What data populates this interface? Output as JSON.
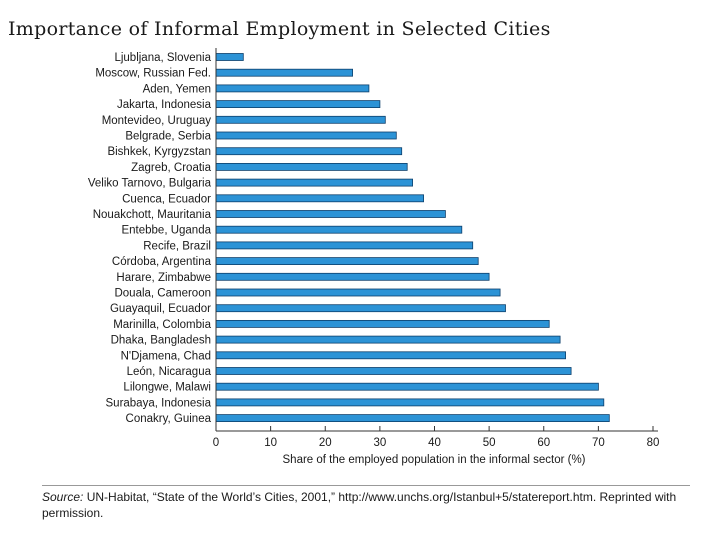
{
  "slide": {
    "title": "Importance of Informal Employment in Selected Cities"
  },
  "chart_data": {
    "type": "bar",
    "orientation": "horizontal",
    "title": "",
    "xlabel": "Share of the employed population in the informal sector (%)",
    "ylabel": "",
    "xlim": [
      0,
      80
    ],
    "xticks": [
      0,
      10,
      20,
      30,
      40,
      50,
      60,
      70,
      80
    ],
    "grid": false,
    "bar_color": "#2c93d6",
    "bar_edge_color": "#0d3f6b",
    "categories": [
      "Ljubljana, Slovenia",
      "Moscow, Russian Fed.",
      "Aden, Yemen",
      "Jakarta, Indonesia",
      "Montevideo, Uruguay",
      "Belgrade, Serbia",
      "Bishkek, Kyrgyzstan",
      "Zagreb, Croatia",
      "Veliko Tarnovo, Bulgaria",
      "Cuenca, Ecuador",
      "Nouakchott, Mauritania",
      "Entebbe, Uganda",
      "Recife, Brazil",
      "Córdoba, Argentina",
      "Harare, Zimbabwe",
      "Douala, Cameroon",
      "Guayaquil, Ecuador",
      "Marinilla, Colombia",
      "Dhaka, Bangladesh",
      "N'Djamena, Chad",
      "León, Nicaragua",
      "Lilongwe, Malawi",
      "Surabaya, Indonesia",
      "Conakry, Guinea"
    ],
    "values": [
      5,
      25,
      28,
      30,
      31,
      33,
      34,
      35,
      36,
      38,
      42,
      45,
      47,
      48,
      50,
      52,
      53,
      61,
      63,
      64,
      65,
      70,
      71,
      72
    ]
  },
  "source_note": {
    "lead": "Source:",
    "text": " UN-Habitat, “State of the World’s Cities, 2001,” http://www.unchs.org/Istanbul+5/statereport.htm. Reprinted with permission."
  }
}
